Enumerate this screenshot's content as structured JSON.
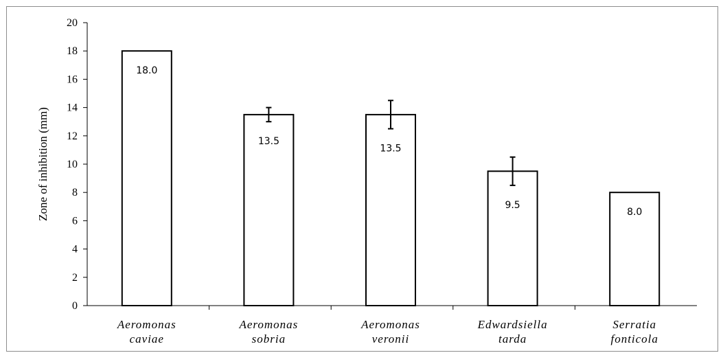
{
  "chart_data": {
    "type": "bar",
    "title": "",
    "xlabel": "",
    "ylabel": "Zone of inhibition (mm)",
    "ylim": [
      0,
      20
    ],
    "yticks": [
      0,
      2,
      4,
      6,
      8,
      10,
      12,
      14,
      16,
      18,
      20
    ],
    "grid": false,
    "categories": [
      [
        "Aeromonas",
        "caviae"
      ],
      [
        "Aeromonas",
        "sobria"
      ],
      [
        "Aeromonas",
        "veronii"
      ],
      [
        "Edwardsiella",
        "tarda"
      ],
      [
        "Serratia",
        "fonticola"
      ]
    ],
    "values": [
      18.0,
      13.5,
      13.5,
      9.5,
      8.0
    ],
    "data_labels": [
      "18.0",
      "13.5",
      "13.5",
      "9.5",
      "8.0"
    ],
    "error": [
      0,
      0.5,
      1.0,
      1.0,
      0
    ],
    "bar_fill": "#ffffff",
    "bar_stroke": "#000000"
  }
}
